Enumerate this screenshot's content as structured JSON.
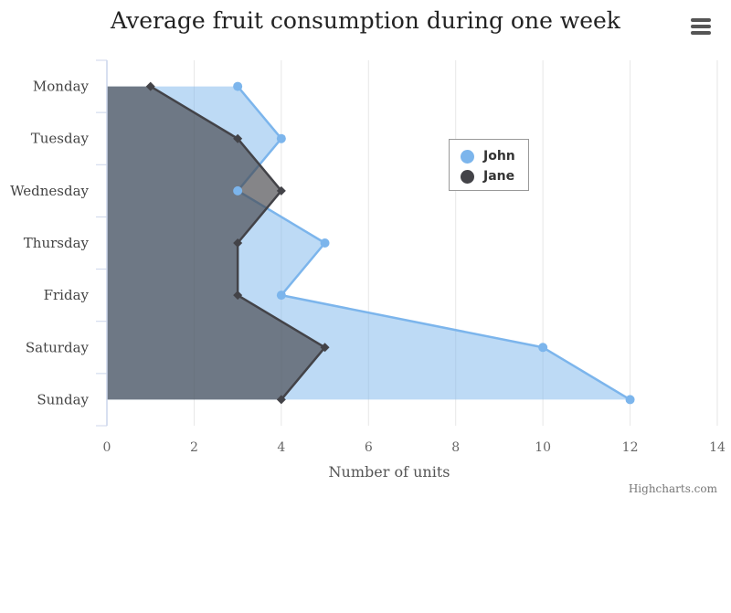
{
  "chart_data": {
    "type": "area",
    "orientation": "horizontal",
    "title": "Average fruit consumption during one week",
    "categories": [
      "Monday",
      "Tuesday",
      "Wednesday",
      "Thursday",
      "Friday",
      "Saturday",
      "Sunday"
    ],
    "series": [
      {
        "name": "John",
        "values": [
          3,
          4,
          3,
          5,
          4,
          10,
          12
        ],
        "color": "#7cb5ec",
        "marker": "circle"
      },
      {
        "name": "Jane",
        "values": [
          1,
          3,
          4,
          3,
          3,
          5,
          4
        ],
        "color": "#434348",
        "marker": "diamond"
      }
    ],
    "xlabel": "Number of units",
    "xlim": [
      0,
      14
    ],
    "xticks": [
      0,
      2,
      4,
      6,
      8,
      10,
      12,
      14
    ],
    "grid": true,
    "legend_position": "top-right-inside"
  },
  "credits": "Highcharts.com",
  "menu_icon": "hamburger-menu-icon"
}
